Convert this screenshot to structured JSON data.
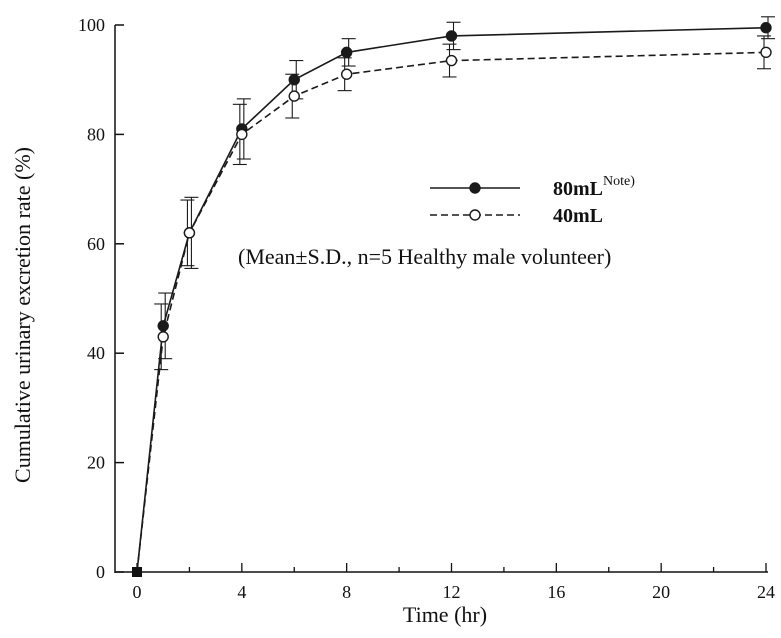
{
  "chart_data": {
    "type": "line",
    "title": "",
    "xlabel": "Time (hr)",
    "ylabel": "Cumulative urinary excretion rate (%)",
    "xlim": [
      0,
      24
    ],
    "ylim": [
      0,
      100
    ],
    "x_ticks": [
      0,
      4,
      8,
      12,
      16,
      20,
      24
    ],
    "y_ticks": [
      0,
      20,
      40,
      60,
      80,
      100
    ],
    "grid": false,
    "legend_position": "upper-right",
    "annotation": "(Mean±S.D., n=5 Healthy male volunteer)",
    "x": [
      0,
      1,
      2,
      4,
      6,
      8,
      12,
      24
    ],
    "series": [
      {
        "name": "80mL",
        "legend_superscript": "Note)",
        "line_style": "solid",
        "marker": "filled-circle",
        "color": "#1a1a1a",
        "values": [
          0,
          45,
          62,
          81,
          90,
          95,
          98,
          99.5
        ],
        "sd": [
          0,
          6,
          6.5,
          5.5,
          3.5,
          2.5,
          2.5,
          2
        ]
      },
      {
        "name": "40mL",
        "legend_superscript": "",
        "line_style": "dashed",
        "marker": "open-circle",
        "color": "#1a1a1a",
        "values": [
          0,
          43,
          62,
          80,
          87,
          91,
          93.5,
          95
        ],
        "sd": [
          0,
          6,
          6,
          5.5,
          4,
          3,
          3,
          3
        ]
      }
    ]
  }
}
